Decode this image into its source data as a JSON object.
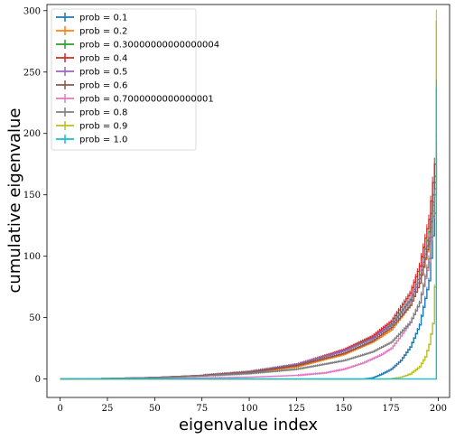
{
  "chart_data": {
    "type": "line",
    "title": "",
    "xlabel": "eigenvalue index",
    "ylabel": "cumulative eigenvalue",
    "xlim": [
      -7,
      206
    ],
    "ylim": [
      -15,
      305
    ],
    "xticks": [
      0,
      25,
      50,
      75,
      100,
      125,
      150,
      175,
      200
    ],
    "yticks": [
      0,
      50,
      100,
      150,
      200,
      250,
      300
    ],
    "grid": false,
    "legend_position": "top-left",
    "error_bars": true,
    "series": [
      {
        "name": "prob = 0.1",
        "color": "#1f77b4",
        "points": [
          [
            0,
            0
          ],
          [
            160,
            0
          ],
          [
            165,
            1
          ],
          [
            170,
            4
          ],
          [
            175,
            8
          ],
          [
            180,
            15
          ],
          [
            185,
            26
          ],
          [
            190,
            44
          ],
          [
            195,
            80
          ],
          [
            198,
            135
          ],
          [
            199,
            180
          ]
        ]
      },
      {
        "name": "prob = 0.2",
        "color": "#ff7f0e",
        "points": [
          [
            0,
            0
          ],
          [
            25,
            0.3
          ],
          [
            50,
            1
          ],
          [
            75,
            2.5
          ],
          [
            100,
            5
          ],
          [
            125,
            10
          ],
          [
            150,
            20
          ],
          [
            165,
            30
          ],
          [
            175,
            40
          ],
          [
            185,
            60
          ],
          [
            190,
            78
          ],
          [
            195,
            110
          ],
          [
            198,
            150
          ],
          [
            199,
            170
          ]
        ]
      },
      {
        "name": "prob = 0.30000000000000004",
        "color": "#2ca02c",
        "points": [
          [
            0,
            0
          ],
          [
            25,
            0.4
          ],
          [
            50,
            1.2
          ],
          [
            75,
            3
          ],
          [
            100,
            6
          ],
          [
            125,
            12
          ],
          [
            150,
            23
          ],
          [
            165,
            34
          ],
          [
            175,
            45
          ],
          [
            185,
            65
          ],
          [
            190,
            85
          ],
          [
            195,
            120
          ],
          [
            198,
            165
          ],
          [
            199,
            185
          ]
        ]
      },
      {
        "name": "prob = 0.4",
        "color": "#d62728",
        "points": [
          [
            0,
            0
          ],
          [
            25,
            0.4
          ],
          [
            50,
            1.3
          ],
          [
            75,
            3
          ],
          [
            100,
            6
          ],
          [
            125,
            12
          ],
          [
            150,
            24
          ],
          [
            165,
            35
          ],
          [
            175,
            47
          ],
          [
            185,
            70
          ],
          [
            190,
            92
          ],
          [
            195,
            130
          ],
          [
            198,
            175
          ],
          [
            199,
            195
          ]
        ]
      },
      {
        "name": "prob = 0.5",
        "color": "#9467bd",
        "points": [
          [
            0,
            0
          ],
          [
            25,
            0.4
          ],
          [
            50,
            1.3
          ],
          [
            75,
            3
          ],
          [
            100,
            6
          ],
          [
            125,
            12
          ],
          [
            150,
            23
          ],
          [
            165,
            33
          ],
          [
            175,
            44
          ],
          [
            185,
            64
          ],
          [
            190,
            82
          ],
          [
            195,
            115
          ],
          [
            198,
            155
          ],
          [
            199,
            175
          ]
        ]
      },
      {
        "name": "prob = 0.6",
        "color": "#8c564b",
        "points": [
          [
            0,
            0
          ],
          [
            25,
            0.4
          ],
          [
            50,
            1.2
          ],
          [
            75,
            2.8
          ],
          [
            100,
            5.5
          ],
          [
            125,
            11
          ],
          [
            150,
            21
          ],
          [
            165,
            31
          ],
          [
            175,
            42
          ],
          [
            185,
            60
          ],
          [
            190,
            78
          ],
          [
            195,
            112
          ],
          [
            198,
            160
          ],
          [
            199,
            180
          ]
        ]
      },
      {
        "name": "prob = 0.7000000000000001",
        "color": "#e377c2",
        "points": [
          [
            0,
            0
          ],
          [
            50,
            0.5
          ],
          [
            100,
            1.5
          ],
          [
            125,
            3
          ],
          [
            140,
            5
          ],
          [
            150,
            8
          ],
          [
            160,
            13
          ],
          [
            170,
            20
          ],
          [
            175,
            25
          ],
          [
            180,
            35
          ],
          [
            185,
            46
          ],
          [
            190,
            62
          ],
          [
            195,
            95
          ],
          [
            198,
            150
          ],
          [
            199,
            200
          ]
        ]
      },
      {
        "name": "prob = 0.8",
        "color": "#7f7f7f",
        "points": [
          [
            0,
            0
          ],
          [
            25,
            0.3
          ],
          [
            50,
            1
          ],
          [
            75,
            2.5
          ],
          [
            100,
            4.5
          ],
          [
            125,
            8
          ],
          [
            150,
            15
          ],
          [
            165,
            22
          ],
          [
            175,
            30
          ],
          [
            185,
            46
          ],
          [
            190,
            62
          ],
          [
            195,
            98
          ],
          [
            198,
            150
          ],
          [
            199,
            175
          ]
        ]
      },
      {
        "name": "prob = 0.9",
        "color": "#bcbd22",
        "points": [
          [
            0,
            0
          ],
          [
            170,
            0
          ],
          [
            175,
            0.3
          ],
          [
            180,
            1.5
          ],
          [
            185,
            4
          ],
          [
            190,
            10
          ],
          [
            193,
            18
          ],
          [
            195,
            28
          ],
          [
            197,
            45
          ],
          [
            198,
            75
          ],
          [
            199,
            292
          ]
        ]
      },
      {
        "name": "prob = 1.0",
        "color": "#17becf",
        "points": [
          [
            0,
            0
          ],
          [
            198,
            0
          ],
          [
            199,
            237
          ]
        ]
      }
    ]
  }
}
